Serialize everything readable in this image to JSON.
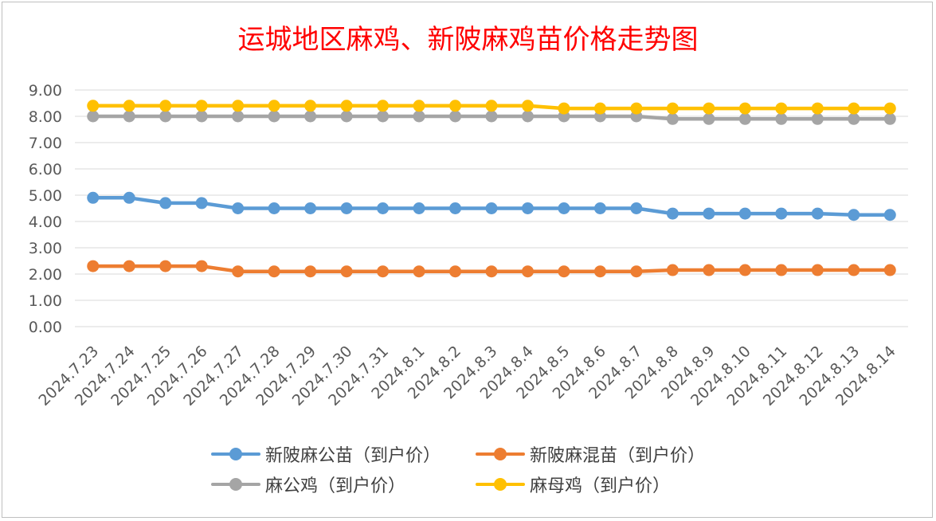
{
  "chart_data": {
    "type": "line",
    "title": "运城地区麻鸡、新陂麻鸡苗价格走势图",
    "categories": [
      "2024.7.23",
      "2024.7.24",
      "2024.7.25",
      "2024.7.26",
      "2024.7.27",
      "2024.7.28",
      "2024.7.29",
      "2024.7.30",
      "2024.7.31",
      "2024.8.1",
      "2024.8.2",
      "2024.8.3",
      "2024.8.4",
      "2024.8.5",
      "2024.8.6",
      "2024.8.7",
      "2024.8.8",
      "2024.8.9",
      "2024.8.10",
      "2024.8.11",
      "2024.8.12",
      "2024.8.13",
      "2024.8.14"
    ],
    "ylim": [
      0,
      9
    ],
    "yticks": [
      "0.00",
      "1.00",
      "2.00",
      "3.00",
      "4.00",
      "5.00",
      "6.00",
      "7.00",
      "8.00",
      "9.00"
    ],
    "grid": true,
    "legend_position": "bottom",
    "series": [
      {
        "name": "新陂麻公苗（到户价）",
        "color": "#5b9bd5",
        "values": [
          4.9,
          4.9,
          4.7,
          4.7,
          4.5,
          4.5,
          4.5,
          4.5,
          4.5,
          4.5,
          4.5,
          4.5,
          4.5,
          4.5,
          4.5,
          4.5,
          4.3,
          4.3,
          4.3,
          4.3,
          4.3,
          4.25,
          4.25
        ]
      },
      {
        "name": "新陂麻混苗（到户价）",
        "color": "#ed7d31",
        "values": [
          2.3,
          2.3,
          2.3,
          2.3,
          2.1,
          2.1,
          2.1,
          2.1,
          2.1,
          2.1,
          2.1,
          2.1,
          2.1,
          2.1,
          2.1,
          2.1,
          2.15,
          2.15,
          2.15,
          2.15,
          2.15,
          2.15,
          2.15
        ]
      },
      {
        "name": "麻公鸡（到户价）",
        "color": "#a5a5a5",
        "values": [
          8.0,
          8.0,
          8.0,
          8.0,
          8.0,
          8.0,
          8.0,
          8.0,
          8.0,
          8.0,
          8.0,
          8.0,
          8.0,
          8.0,
          8.0,
          8.0,
          7.9,
          7.9,
          7.9,
          7.9,
          7.9,
          7.9,
          7.9
        ]
      },
      {
        "name": "麻母鸡（到户价）",
        "color": "#ffc000",
        "values": [
          8.4,
          8.4,
          8.4,
          8.4,
          8.4,
          8.4,
          8.4,
          8.4,
          8.4,
          8.4,
          8.4,
          8.4,
          8.4,
          8.3,
          8.3,
          8.3,
          8.3,
          8.3,
          8.3,
          8.3,
          8.3,
          8.3,
          8.3
        ]
      }
    ]
  }
}
